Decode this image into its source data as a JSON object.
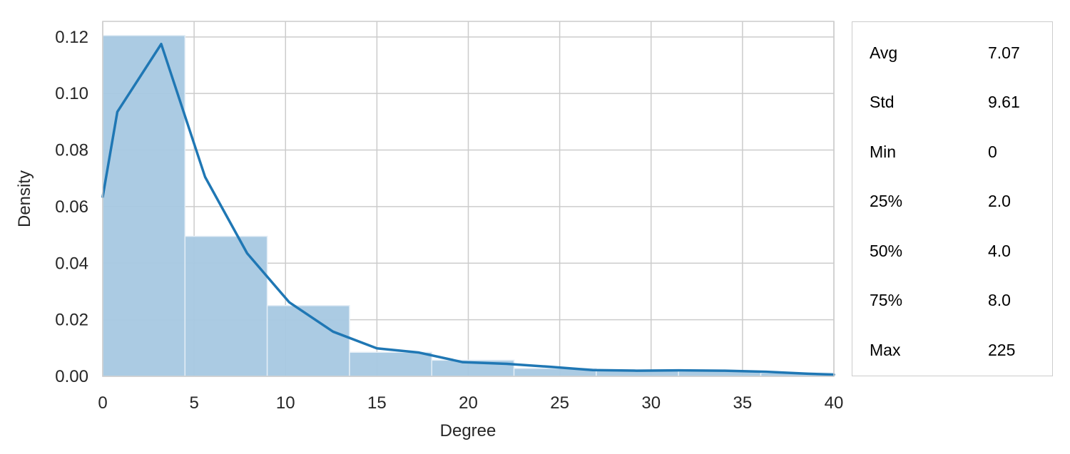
{
  "chart_data": {
    "type": "bar",
    "subtype": "histogram-with-density-line",
    "xlabel": "Degree",
    "ylabel": "Density",
    "xlim": [
      0,
      40
    ],
    "ylim": [
      0,
      0.12
    ],
    "xticks": [
      0,
      5,
      10,
      15,
      20,
      25,
      30,
      35,
      40
    ],
    "yticks": [
      0.0,
      0.02,
      0.04,
      0.06,
      0.08,
      0.1,
      0.12
    ],
    "ytick_labels": [
      "0.00",
      "0.02",
      "0.04",
      "0.06",
      "0.08",
      "0.10",
      "0.12"
    ],
    "grid": true,
    "bins": [
      {
        "x0": 0.0,
        "x1": 4.5,
        "density": 0.1205
      },
      {
        "x0": 4.5,
        "x1": 9.0,
        "density": 0.0495
      },
      {
        "x0": 9.0,
        "x1": 13.5,
        "density": 0.025
      },
      {
        "x0": 13.5,
        "x1": 18.0,
        "density": 0.0085
      },
      {
        "x0": 18.0,
        "x1": 22.5,
        "density": 0.0057
      },
      {
        "x0": 22.5,
        "x1": 27.0,
        "density": 0.0028
      },
      {
        "x0": 27.0,
        "x1": 31.5,
        "density": 0.0022
      },
      {
        "x0": 31.5,
        "x1": 36.0,
        "density": 0.0018
      },
      {
        "x0": 36.0,
        "x1": 40.0,
        "density": 0.0012
      }
    ],
    "density_line": {
      "x": [
        0,
        0.8,
        3.2,
        5.6,
        7.9,
        10.2,
        12.6,
        15.0,
        17.3,
        19.7,
        22.1,
        24.4,
        26.8,
        29.2,
        31.5,
        33.9,
        36.3,
        38.6,
        40
      ],
      "y": [
        0.0635,
        0.0935,
        0.1175,
        0.0705,
        0.0435,
        0.0262,
        0.0158,
        0.0099,
        0.0084,
        0.005,
        0.0044,
        0.0034,
        0.0022,
        0.002,
        0.0021,
        0.002,
        0.0016,
        0.0009,
        0.0006
      ]
    },
    "colors": {
      "bar": "#a6c8e2",
      "bar_edge": "#e4eef6",
      "line": "#1f77b4",
      "grid": "#cccccc"
    }
  },
  "stats": [
    {
      "key": "Avg",
      "value": "7.07"
    },
    {
      "key": "Std",
      "value": "9.61"
    },
    {
      "key": "Min",
      "value": "0"
    },
    {
      "key": "25%",
      "value": "2.0"
    },
    {
      "key": "50%",
      "value": "4.0"
    },
    {
      "key": "75%",
      "value": "8.0"
    },
    {
      "key": "Max",
      "value": "225"
    }
  ]
}
